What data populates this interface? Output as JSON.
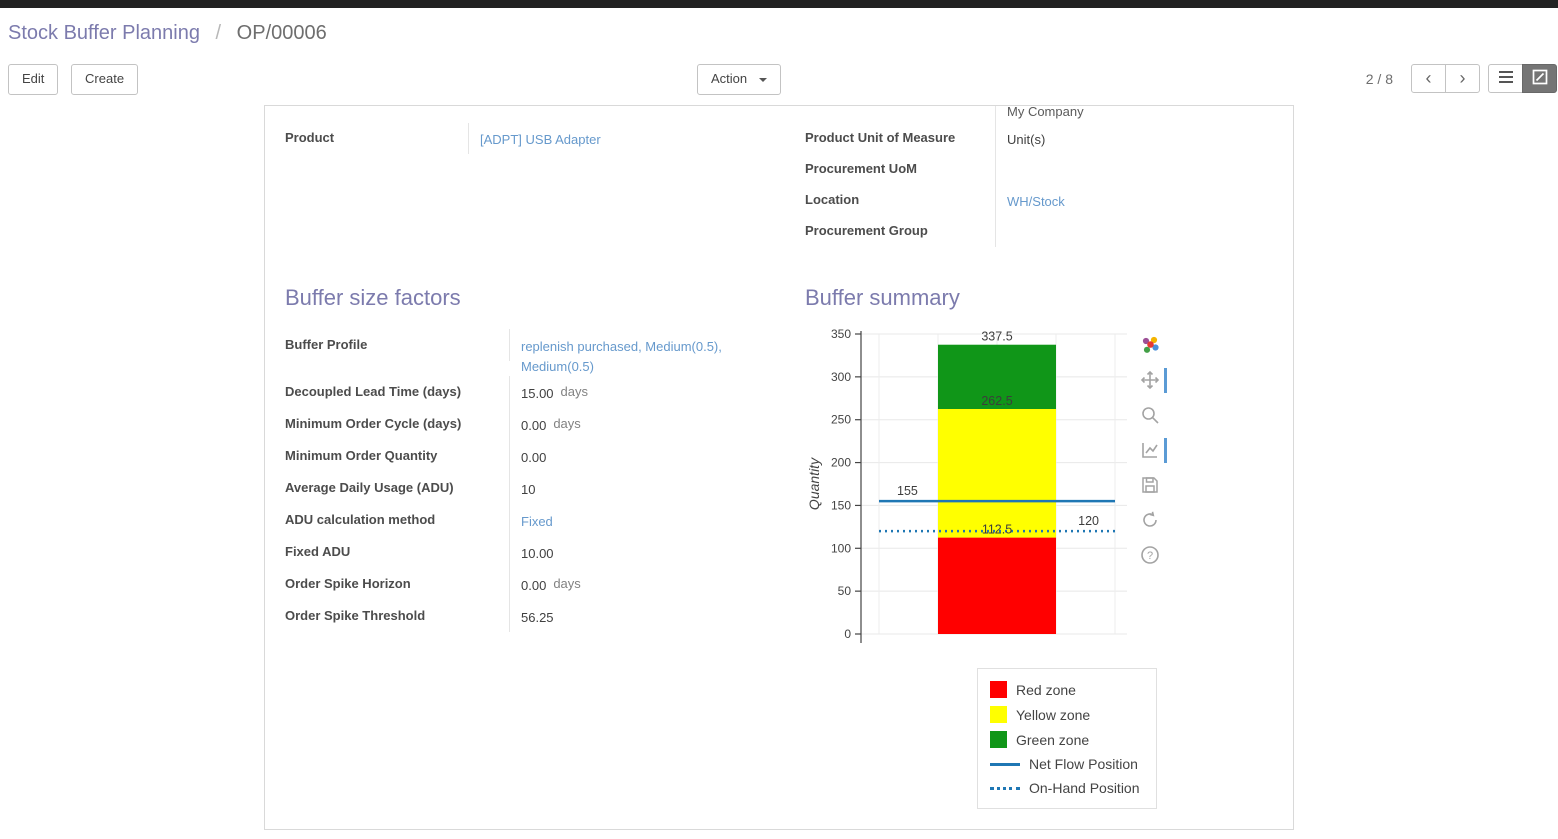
{
  "breadcrumb": {
    "parent": "Stock Buffer Planning",
    "separator": "/",
    "current": "OP/00006"
  },
  "control_panel": {
    "edit_label": "Edit",
    "create_label": "Create",
    "action_label": "Action",
    "pager": "2 / 8"
  },
  "form": {
    "top_left": {
      "rows": [
        {
          "label": "Product",
          "value": "[ADPT] USB Adapter",
          "link": true
        }
      ]
    },
    "top_right": {
      "rows": [
        {
          "label": "",
          "value": "My Company",
          "clipped": true
        },
        {
          "label": "Product Unit of Measure",
          "value": "Unit(s)"
        },
        {
          "label": "Procurement UoM",
          "value": ""
        },
        {
          "label": "Location",
          "value": "WH/Stock",
          "link": true
        },
        {
          "label": "Procurement Group",
          "value": ""
        }
      ]
    },
    "buffer_factors": {
      "heading": "Buffer size factors",
      "rows": [
        {
          "label": "Buffer Profile",
          "value": "replenish purchased, Medium(0.5), Medium(0.5)",
          "link": true
        },
        {
          "label": "Decoupled Lead Time (days)",
          "value": "15.00",
          "unit": "days"
        },
        {
          "label": "Minimum Order Cycle (days)",
          "value": "0.00",
          "unit": "days"
        },
        {
          "label": "Minimum Order Quantity",
          "value": "0.00"
        },
        {
          "label": "Average Daily Usage (ADU)",
          "value": "10"
        },
        {
          "label": "ADU calculation method",
          "value": "Fixed",
          "link": true
        },
        {
          "label": "Fixed ADU",
          "value": "10.00"
        },
        {
          "label": "Order Spike Horizon",
          "value": "0.00",
          "unit": "days"
        },
        {
          "label": "Order Spike Threshold",
          "value": "56.25"
        }
      ]
    },
    "buffer_summary_heading": "Buffer summary"
  },
  "chart_toolbar": {
    "icons": [
      "plotly-logo",
      "pan",
      "zoom",
      "autoscale",
      "save",
      "reset-axes",
      "help"
    ]
  },
  "chart_data": {
    "type": "bar",
    "title": "",
    "xlabel": "",
    "ylabel": "Quantity",
    "ylim": [
      0,
      350
    ],
    "yticks": [
      0,
      50,
      100,
      150,
      200,
      250,
      300,
      350
    ],
    "grid": true,
    "zones": [
      {
        "name": "Red zone",
        "from": 0,
        "to": 112.5,
        "color": "#ff0000",
        "top_label": "112.5"
      },
      {
        "name": "Yellow zone",
        "from": 112.5,
        "to": 262.5,
        "color": "#ffff00",
        "top_label": "262.5"
      },
      {
        "name": "Green zone",
        "from": 262.5,
        "to": 337.5,
        "color": "#109618",
        "top_label": "337.5"
      }
    ],
    "reference_lines": [
      {
        "name": "Net Flow Position",
        "value": 155,
        "label": "155",
        "style": "solid",
        "color": "#1f77b4",
        "label_side": "left"
      },
      {
        "name": "On-Hand Position",
        "value": 120,
        "label": "120",
        "style": "dotted",
        "color": "#1f77b4",
        "label_side": "right"
      }
    ],
    "legend_position": "bottom-right",
    "legend": [
      {
        "label": "Red zone",
        "swatch": "square",
        "color": "#ff0000"
      },
      {
        "label": "Yellow zone",
        "swatch": "square",
        "color": "#ffff00"
      },
      {
        "label": "Green zone",
        "swatch": "square",
        "color": "#109618"
      },
      {
        "label": "Net Flow Position",
        "swatch": "line",
        "color": "#1f77b4"
      },
      {
        "label": "On-Hand Position",
        "swatch": "dotted",
        "color": "#1f77b4"
      }
    ]
  }
}
